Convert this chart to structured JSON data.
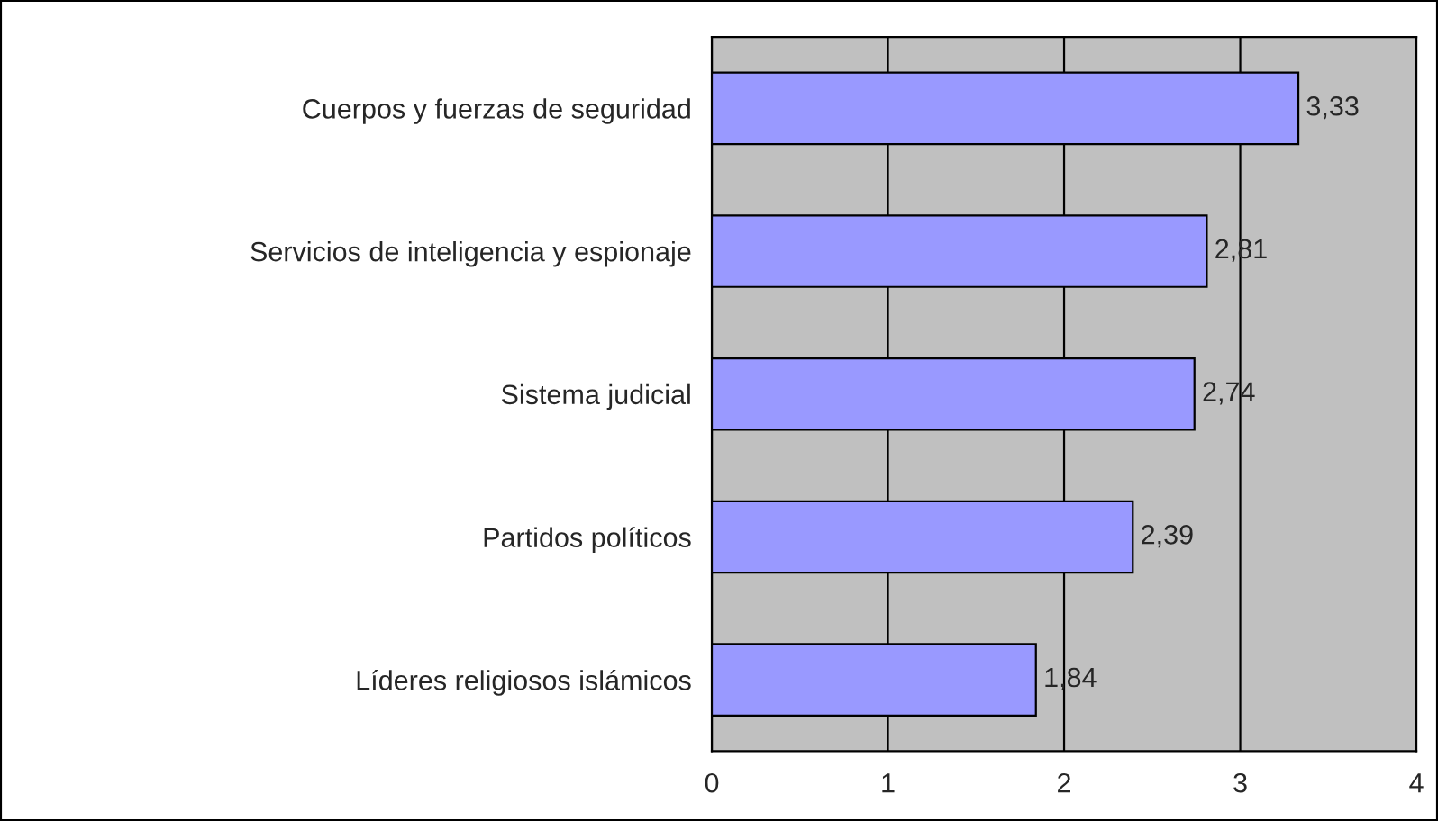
{
  "chart_data": {
    "type": "bar",
    "orientation": "horizontal",
    "categories": [
      "Cuerpos y fuerzas de seguridad",
      "Servicios de inteligencia y espionaje",
      "Sistema judicial",
      "Partidos políticos",
      "Líderes religiosos islámicos"
    ],
    "values": [
      3.33,
      2.81,
      2.74,
      2.39,
      1.84
    ],
    "value_labels": [
      "3,33",
      "2,81",
      "2,74",
      "2,39",
      "1,84"
    ],
    "color": "#9999ff",
    "xlim": [
      0,
      4
    ],
    "xticks": [
      0,
      1,
      2,
      3,
      4
    ],
    "grid": "x"
  }
}
